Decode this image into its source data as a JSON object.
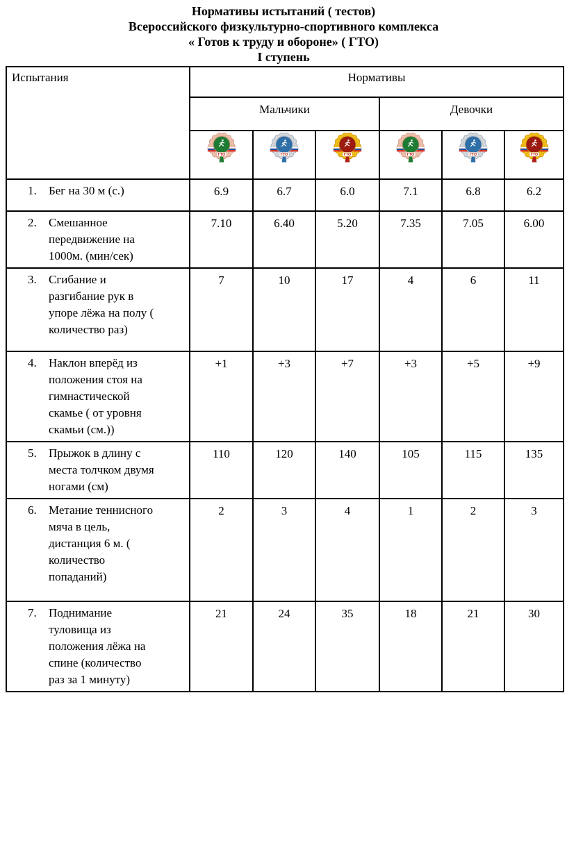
{
  "document": {
    "title_lines": [
      "Нормативы истытаний ( тестов)",
      "Всероссийского физкультурно-спортивного комплекса",
      "« Готов к труду и обороне» ( ГТО)",
      "I ступень"
    ]
  },
  "table": {
    "header": {
      "tests": "Испытания",
      "standards": "Нормативы",
      "boys": "Мальчики",
      "girls": "Девочки"
    },
    "badges": [
      {
        "name": "gto-bronze-badge",
        "label": "ГТО",
        "outer": "#eec1ae",
        "outer_edge": "#d0967f",
        "center": "#1e7b33",
        "stem": "#1e7b33"
      },
      {
        "name": "gto-silver-badge",
        "label": "ГТО",
        "outer": "#d6dade",
        "outer_edge": "#a3abb8",
        "center": "#2f6fa8",
        "stem": "#2f6fa8"
      },
      {
        "name": "gto-gold-badge",
        "label": "ГТО",
        "outer": "#f2c01d",
        "outer_edge": "#cf9400",
        "center": "#9c1a10",
        "stem": "#b02018"
      }
    ],
    "badge_common": {
      "flag_white": "#ffffff",
      "flag_blue": "#2a4d9b",
      "flag_red": "#d52b1e",
      "gto_text": "#c21a12",
      "band": "#fdf8f2"
    },
    "rows": [
      {
        "num": "1.",
        "label": "Бег на 30 м (с.)",
        "values": [
          "6.9",
          "6.7",
          "6.0",
          "7.1",
          "6.8",
          "6.2"
        ]
      },
      {
        "num": "2.",
        "label": "Смешанное передвижение на 1000м. (мин/сек)",
        "values": [
          "7.10",
          "6.40",
          "5.20",
          "7.35",
          "7.05",
          "6.00"
        ]
      },
      {
        "num": "3.",
        "label": "Сгибание и разгибание рук в упоре лёжа на полу ( количество раз)",
        "values": [
          "7",
          "10",
          "17",
          "4",
          "6",
          "11"
        ]
      },
      {
        "num": "4.",
        "label": "Наклон вперёд из положения стоя на гимнастической скамье ( от уровня скамьи (см.))",
        "values": [
          "+1",
          "+3",
          "+7",
          "+3",
          "+5",
          "+9"
        ]
      },
      {
        "num": "5.",
        "label": "Прыжок в длину с места толчком двумя ногами (см)",
        "values": [
          "110",
          "120",
          "140",
          "105",
          "115",
          "135"
        ]
      },
      {
        "num": "6.",
        "label": "Метание теннисного мяча в цель, дистанция 6 м. ( количество попаданий)",
        "values": [
          "2",
          "3",
          "4",
          "1",
          "2",
          "3"
        ]
      },
      {
        "num": "7.",
        "label": "Поднимание туловища из положения лёжа на спине (количество раз за 1 минуту)",
        "values": [
          "21",
          "24",
          "35",
          "18",
          "21",
          "30"
        ]
      }
    ]
  }
}
